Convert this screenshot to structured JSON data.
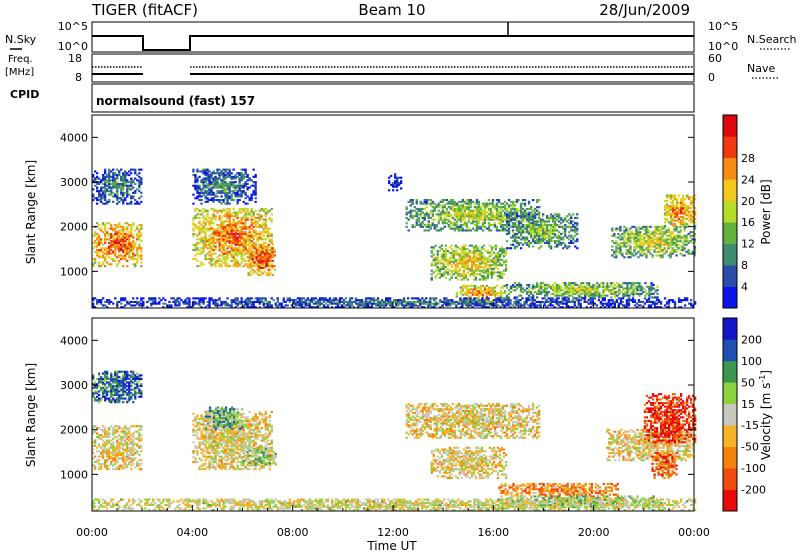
{
  "header": {
    "title_left": "TIGER (fitACF)",
    "title_center": "Beam 10",
    "title_right": "28/Jun/2009"
  },
  "panels": {
    "nsky": {
      "label": "N.Sky",
      "left_ticks": [
        "10^5",
        "10^0"
      ],
      "right_label": "N.Search",
      "right_ticks": [
        "10^5",
        "10^0"
      ]
    },
    "freq": {
      "label_line1": "Freq.",
      "label_line2": "[MHz]",
      "left_ticks": [
        "18",
        "8"
      ],
      "right_label": "Nave",
      "right_ticks": [
        "60",
        "0"
      ]
    },
    "cpid": {
      "label": "CPID",
      "value": "normalsound (fast) 157"
    }
  },
  "chart_data": [
    {
      "type": "heatmap",
      "name": "power",
      "ylabel": "Slant Range [km]",
      "yticks": [
        "1000",
        "2000",
        "3000",
        "4000"
      ],
      "ylim": [
        180,
        4500
      ],
      "xlim_hours": [
        0,
        24
      ],
      "colorbar_label": "Power [dB]",
      "colorbar_ticks": [
        "4",
        "8",
        "12",
        "16",
        "20",
        "24",
        "28"
      ],
      "colorbar_colors": [
        "#0a14e6",
        "#2a4ea8",
        "#3d8c6e",
        "#62b040",
        "#b4dc28",
        "#f5c81e",
        "#f58c14",
        "#ee3a0e",
        "#dc0a0a"
      ],
      "echo_regions": [
        {
          "t0": 0.0,
          "t1": 2.0,
          "r0": 1100,
          "r1": 2100,
          "level": 0.85
        },
        {
          "t0": 0.0,
          "t1": 2.0,
          "r0": 2500,
          "r1": 3300,
          "level": 0.35
        },
        {
          "t0": 4.0,
          "t1": 7.2,
          "r0": 1100,
          "r1": 2400,
          "level": 0.8
        },
        {
          "t0": 4.0,
          "t1": 6.5,
          "r0": 2500,
          "r1": 3300,
          "level": 0.35
        },
        {
          "t0": 6.2,
          "t1": 7.3,
          "r0": 900,
          "r1": 1600,
          "level": 0.9
        },
        {
          "t0": 11.8,
          "t1": 12.3,
          "r0": 2800,
          "r1": 3200,
          "level": 0.2
        },
        {
          "t0": 12.5,
          "t1": 17.8,
          "r0": 1900,
          "r1": 2600,
          "level": 0.55
        },
        {
          "t0": 13.5,
          "t1": 16.5,
          "r0": 800,
          "r1": 1600,
          "level": 0.65
        },
        {
          "t0": 14.5,
          "t1": 16.5,
          "r0": 300,
          "r1": 700,
          "level": 0.75
        },
        {
          "t0": 16.5,
          "t1": 19.3,
          "r0": 1500,
          "r1": 2300,
          "level": 0.5
        },
        {
          "t0": 16.5,
          "t1": 22.5,
          "r0": 400,
          "r1": 750,
          "level": 0.55
        },
        {
          "t0": 20.7,
          "t1": 24.0,
          "r0": 1300,
          "r1": 2000,
          "level": 0.6
        },
        {
          "t0": 22.8,
          "t1": 24.0,
          "r0": 2000,
          "r1": 2700,
          "level": 0.8
        },
        {
          "t0": 0.0,
          "t1": 24.0,
          "r0": 180,
          "r1": 400,
          "level": 0.3
        }
      ]
    },
    {
      "type": "heatmap",
      "name": "velocity",
      "ylabel": "Slant Range [km]",
      "xlabel": "Time UT",
      "xticks": [
        "00:00",
        "04:00",
        "08:00",
        "12:00",
        "16:00",
        "20:00",
        "00:00"
      ],
      "yticks": [
        "1000",
        "2000",
        "3000",
        "4000"
      ],
      "ylim": [
        180,
        4500
      ],
      "xlim_hours": [
        0,
        24
      ],
      "colorbar_label_main": "Velocity [m s",
      "colorbar_label_sup": "-1",
      "colorbar_label_close": "]",
      "colorbar_ticks": [
        "-200",
        "-100",
        "-50",
        "-15",
        "15",
        "50",
        "100",
        "200"
      ],
      "colorbar_colors": [
        "#e60a0a",
        "#f04a0c",
        "#f5820e",
        "#f5b428",
        "#c8c8be",
        "#8cd23c",
        "#3c9650",
        "#1e50b4",
        "#1414c8"
      ],
      "echo_regions": [
        {
          "t0": 0.0,
          "t1": 2.0,
          "r0": 1100,
          "r1": 2100,
          "level": 0.45
        },
        {
          "t0": 0.0,
          "t1": 2.0,
          "r0": 2600,
          "r1": 3300,
          "level": 0.8
        },
        {
          "t0": 4.0,
          "t1": 7.2,
          "r0": 1100,
          "r1": 2400,
          "level": 0.45
        },
        {
          "t0": 4.5,
          "t1": 6.0,
          "r0": 2000,
          "r1": 2500,
          "level": 0.65
        },
        {
          "t0": 6.0,
          "t1": 7.3,
          "r0": 1200,
          "r1": 1600,
          "level": 0.6
        },
        {
          "t0": 12.5,
          "t1": 17.8,
          "r0": 1800,
          "r1": 2600,
          "level": 0.45
        },
        {
          "t0": 13.5,
          "t1": 16.5,
          "r0": 900,
          "r1": 1600,
          "level": 0.45
        },
        {
          "t0": 16.2,
          "t1": 21.0,
          "r0": 450,
          "r1": 800,
          "level": 0.3
        },
        {
          "t0": 16.5,
          "t1": 22.5,
          "r0": 250,
          "r1": 500,
          "level": 0.6
        },
        {
          "t0": 20.5,
          "t1": 24.0,
          "r0": 1300,
          "r1": 2000,
          "level": 0.45
        },
        {
          "t0": 22.0,
          "t1": 24.0,
          "r0": 1700,
          "r1": 2800,
          "level": 0.1
        },
        {
          "t0": 22.3,
          "t1": 23.3,
          "r0": 900,
          "r1": 1500,
          "level": 0.2
        },
        {
          "t0": 0.0,
          "t1": 24.0,
          "r0": 180,
          "r1": 450,
          "level": 0.5
        }
      ]
    }
  ]
}
